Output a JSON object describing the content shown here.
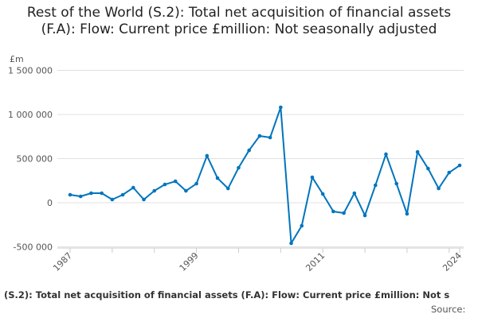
{
  "chart_data": {
    "type": "line",
    "title": "Rest of the World (S.2): Total net acquisition of financial assets (F.A): Flow: Current price £million: Not seasonally adjusted",
    "ylabel": "£m",
    "xlabel": "",
    "ylim": [
      -500000,
      1500000
    ],
    "yticks": [
      {
        "v": 1500000,
        "label": "1 500 000"
      },
      {
        "v": 1000000,
        "label": "1 000 000"
      },
      {
        "v": 500000,
        "label": "500 000"
      },
      {
        "v": 0,
        "label": "0"
      },
      {
        "v": -500000,
        "label": "-500 000"
      }
    ],
    "xticklabels": [
      "1987",
      "1999",
      "2011",
      "2024"
    ],
    "x": [
      1987,
      1988,
      1989,
      1990,
      1991,
      1992,
      1993,
      1994,
      1995,
      1996,
      1997,
      1998,
      1999,
      2000,
      2001,
      2002,
      2003,
      2004,
      2005,
      2006,
      2007,
      2008,
      2009,
      2010,
      2011,
      2012,
      2013,
      2014,
      2015,
      2016,
      2017,
      2018,
      2019,
      2020,
      2021,
      2022,
      2023,
      2024
    ],
    "series": [
      {
        "name": "Rest of the World (S.2): Total net acquisition of financial assets (F.A)",
        "color": "#0075bc",
        "values": [
          90000,
          72000,
          108000,
          108000,
          36000,
          90000,
          171000,
          36000,
          135000,
          207000,
          243000,
          135000,
          216000,
          532000,
          279000,
          162000,
          396000,
          594000,
          757000,
          739000,
          1081000,
          -459000,
          -261000,
          288000,
          99000,
          -99000,
          -117000,
          108000,
          -144000,
          198000,
          550000,
          216000,
          -126000,
          576000,
          387000,
          162000,
          342000,
          423000
        ]
      }
    ],
    "grid": true,
    "legend": "none"
  },
  "footer": {
    "text": "(S.2): Total net acquisition of financial assets (F.A): Flow: Current price £million: Not s",
    "source": "Source:"
  }
}
